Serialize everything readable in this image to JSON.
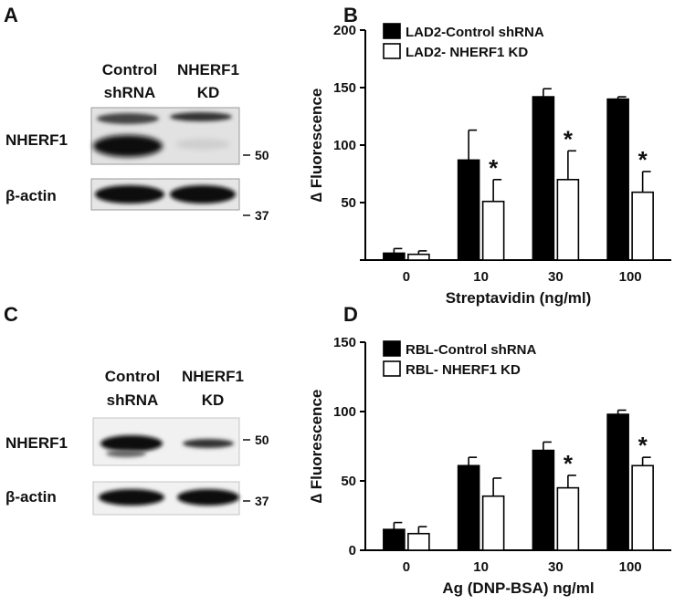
{
  "panels": {
    "A": {
      "letter": "A",
      "lanes": [
        {
          "line1": "Control",
          "line2": "shRNA"
        },
        {
          "line1": "NHERF1",
          "line2": "KD"
        }
      ],
      "rows": [
        "NHERF1",
        "β-actin"
      ],
      "markers": [
        "50",
        "37"
      ]
    },
    "C": {
      "letter": "C",
      "lanes": [
        {
          "line1": "Control",
          "line2": "shRNA"
        },
        {
          "line1": "NHERF1",
          "line2": "KD"
        }
      ],
      "rows": [
        "NHERF1",
        "β-actin"
      ],
      "markers": [
        "50",
        "37"
      ]
    }
  },
  "colors": {
    "control": "#000000",
    "kd": "#ffffff",
    "stroke": "#000000"
  },
  "chart_data": [
    {
      "panel": "B",
      "type": "bar",
      "categories": [
        "0",
        "10",
        "30",
        "100"
      ],
      "xlabel": "Streptavidin (ng/ml)",
      "ylabel": "∆ Fluorescence",
      "ylim": [
        0,
        200
      ],
      "yticks": [
        0,
        50,
        100,
        150,
        200
      ],
      "ytick_labels": [
        "",
        "50",
        "100",
        "150",
        "200"
      ],
      "legend_position": "top-left",
      "series": [
        {
          "name": "LAD2-Control shRNA",
          "values": [
            6,
            87,
            142,
            140
          ],
          "errors": [
            4,
            26,
            7,
            2
          ]
        },
        {
          "name": "LAD2- NHERF1 KD",
          "values": [
            5,
            51,
            70,
            59
          ],
          "errors": [
            3,
            19,
            25,
            18
          ]
        }
      ],
      "significance": [
        null,
        "*",
        "*",
        "*"
      ]
    },
    {
      "panel": "D",
      "type": "bar",
      "categories": [
        "0",
        "10",
        "30",
        "100"
      ],
      "xlabel": "Ag (DNP-BSA) ng/ml",
      "ylabel": "∆ Fluorescence",
      "ylim": [
        0,
        150
      ],
      "yticks": [
        0,
        50,
        100,
        150
      ],
      "ytick_labels": [
        "0",
        "50",
        "100",
        "150"
      ],
      "legend_position": "top-left",
      "series": [
        {
          "name": "RBL-Control shRNA",
          "values": [
            15,
            61,
            72,
            98
          ],
          "errors": [
            5,
            6,
            6,
            3
          ]
        },
        {
          "name": "RBL- NHERF1 KD",
          "values": [
            12,
            39,
            45,
            61
          ],
          "errors": [
            5,
            13,
            9,
            6
          ]
        }
      ],
      "significance": [
        null,
        null,
        "*",
        "*"
      ]
    }
  ]
}
